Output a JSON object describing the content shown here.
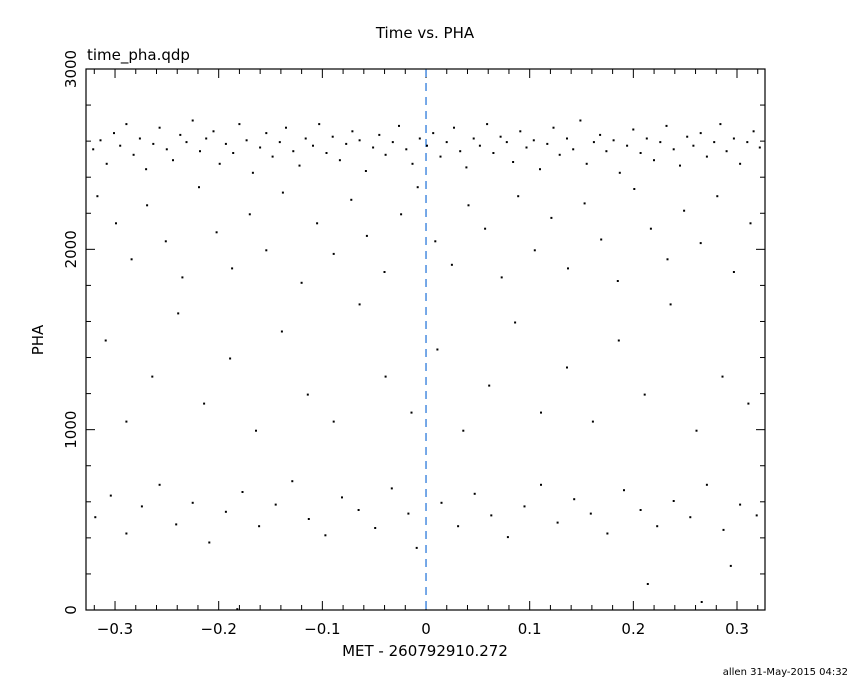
{
  "chart_data": {
    "type": "scatter",
    "title": "Time vs. PHA",
    "file_label": "time_pha.qdp",
    "xlabel": "MET - 260792910.272",
    "ylabel": "PHA",
    "footer": "allen 31-May-2015 04:32",
    "xlim": [
      -0.328,
      0.327
    ],
    "ylim": [
      0,
      3000
    ],
    "x_ticks": [
      -0.3,
      -0.2,
      -0.1,
      0,
      0.1,
      0.2,
      0.3
    ],
    "x_tick_labels": [
      "−0.3",
      "−0.2",
      "−0.1",
      "0",
      "0.1",
      "0.2",
      "0.3"
    ],
    "y_ticks": [
      0,
      1000,
      2000,
      3000
    ],
    "y_tick_labels": [
      "0",
      "1000",
      "2000",
      "3000"
    ],
    "grid": false,
    "reference_line": {
      "x": 0,
      "style": "dashed",
      "color": "#1a6fd8"
    },
    "point_color": "#000000",
    "points": [
      [
        -0.322,
        2560
      ],
      [
        -0.315,
        2610
      ],
      [
        -0.309,
        2480
      ],
      [
        -0.302,
        2650
      ],
      [
        -0.296,
        2580
      ],
      [
        -0.29,
        2700
      ],
      [
        -0.283,
        2530
      ],
      [
        -0.277,
        2620
      ],
      [
        -0.271,
        2450
      ],
      [
        -0.264,
        2590
      ],
      [
        -0.258,
        2680
      ],
      [
        -0.251,
        2560
      ],
      [
        -0.245,
        2500
      ],
      [
        -0.238,
        2640
      ],
      [
        -0.232,
        2600
      ],
      [
        -0.226,
        2720
      ],
      [
        -0.219,
        2550
      ],
      [
        -0.213,
        2620
      ],
      [
        -0.206,
        2660
      ],
      [
        -0.2,
        2480
      ],
      [
        -0.194,
        2590
      ],
      [
        -0.187,
        2540
      ],
      [
        -0.181,
        2700
      ],
      [
        -0.174,
        2610
      ],
      [
        -0.168,
        2430
      ],
      [
        -0.161,
        2570
      ],
      [
        -0.155,
        2650
      ],
      [
        -0.149,
        2520
      ],
      [
        -0.142,
        2600
      ],
      [
        -0.136,
        2680
      ],
      [
        -0.129,
        2550
      ],
      [
        -0.123,
        2470
      ],
      [
        -0.117,
        2620
      ],
      [
        -0.11,
        2580
      ],
      [
        -0.104,
        2700
      ],
      [
        -0.097,
        2540
      ],
      [
        -0.091,
        2630
      ],
      [
        -0.084,
        2500
      ],
      [
        -0.078,
        2590
      ],
      [
        -0.072,
        2660
      ],
      [
        -0.065,
        2610
      ],
      [
        -0.059,
        2440
      ],
      [
        -0.052,
        2570
      ],
      [
        -0.046,
        2640
      ],
      [
        -0.04,
        2530
      ],
      [
        -0.033,
        2600
      ],
      [
        -0.027,
        2690
      ],
      [
        -0.02,
        2560
      ],
      [
        -0.014,
        2480
      ],
      [
        -0.007,
        2620
      ],
      [
        0.0,
        2580
      ],
      [
        0.006,
        2650
      ],
      [
        0.013,
        2520
      ],
      [
        0.019,
        2600
      ],
      [
        0.026,
        2680
      ],
      [
        0.032,
        2550
      ],
      [
        0.038,
        2460
      ],
      [
        0.045,
        2620
      ],
      [
        0.051,
        2580
      ],
      [
        0.058,
        2700
      ],
      [
        0.064,
        2540
      ],
      [
        0.071,
        2630
      ],
      [
        0.077,
        2600
      ],
      [
        0.083,
        2490
      ],
      [
        0.09,
        2660
      ],
      [
        0.096,
        2570
      ],
      [
        0.103,
        2610
      ],
      [
        0.109,
        2450
      ],
      [
        0.116,
        2590
      ],
      [
        0.122,
        2680
      ],
      [
        0.128,
        2530
      ],
      [
        0.135,
        2620
      ],
      [
        0.141,
        2560
      ],
      [
        0.148,
        2720
      ],
      [
        0.154,
        2480
      ],
      [
        0.161,
        2600
      ],
      [
        0.167,
        2640
      ],
      [
        0.173,
        2550
      ],
      [
        0.18,
        2610
      ],
      [
        0.186,
        2430
      ],
      [
        0.193,
        2580
      ],
      [
        0.199,
        2670
      ],
      [
        0.206,
        2540
      ],
      [
        0.212,
        2620
      ],
      [
        0.219,
        2500
      ],
      [
        0.225,
        2600
      ],
      [
        0.231,
        2690
      ],
      [
        0.238,
        2560
      ],
      [
        0.244,
        2470
      ],
      [
        0.251,
        2630
      ],
      [
        0.257,
        2580
      ],
      [
        0.264,
        2650
      ],
      [
        0.27,
        2520
      ],
      [
        0.277,
        2600
      ],
      [
        0.283,
        2700
      ],
      [
        0.289,
        2550
      ],
      [
        0.296,
        2620
      ],
      [
        0.302,
        2480
      ],
      [
        0.309,
        2600
      ],
      [
        0.315,
        2660
      ],
      [
        0.321,
        2570
      ],
      [
        -0.318,
        2300
      ],
      [
        -0.3,
        2150
      ],
      [
        -0.285,
        1950
      ],
      [
        -0.27,
        2250
      ],
      [
        -0.252,
        2050
      ],
      [
        -0.236,
        1850
      ],
      [
        -0.22,
        2350
      ],
      [
        -0.203,
        2100
      ],
      [
        -0.188,
        1900
      ],
      [
        -0.171,
        2200
      ],
      [
        -0.155,
        2000
      ],
      [
        -0.139,
        2320
      ],
      [
        -0.121,
        1820
      ],
      [
        -0.106,
        2150
      ],
      [
        -0.09,
        1980
      ],
      [
        -0.073,
        2280
      ],
      [
        -0.058,
        2080
      ],
      [
        -0.041,
        1880
      ],
      [
        -0.025,
        2200
      ],
      [
        -0.009,
        2350
      ],
      [
        0.008,
        2050
      ],
      [
        0.024,
        1920
      ],
      [
        0.04,
        2250
      ],
      [
        0.056,
        2120
      ],
      [
        0.072,
        1850
      ],
      [
        0.088,
        2300
      ],
      [
        0.104,
        2000
      ],
      [
        0.12,
        2180
      ],
      [
        0.136,
        1900
      ],
      [
        0.152,
        2260
      ],
      [
        0.168,
        2060
      ],
      [
        0.184,
        1830
      ],
      [
        0.2,
        2340
      ],
      [
        0.216,
        2120
      ],
      [
        0.232,
        1950
      ],
      [
        0.248,
        2220
      ],
      [
        0.264,
        2040
      ],
      [
        0.28,
        2300
      ],
      [
        0.296,
        1880
      ],
      [
        0.312,
        2150
      ],
      [
        -0.31,
        1500
      ],
      [
        -0.29,
        1050
      ],
      [
        -0.265,
        1300
      ],
      [
        -0.24,
        1650
      ],
      [
        -0.215,
        1150
      ],
      [
        -0.19,
        1400
      ],
      [
        -0.165,
        1000
      ],
      [
        -0.14,
        1550
      ],
      [
        -0.115,
        1200
      ],
      [
        -0.09,
        1050
      ],
      [
        -0.065,
        1700
      ],
      [
        -0.04,
        1300
      ],
      [
        -0.015,
        1100
      ],
      [
        0.01,
        1450
      ],
      [
        0.035,
        1000
      ],
      [
        0.06,
        1250
      ],
      [
        0.085,
        1600
      ],
      [
        0.11,
        1100
      ],
      [
        0.135,
        1350
      ],
      [
        0.16,
        1050
      ],
      [
        0.185,
        1500
      ],
      [
        0.21,
        1200
      ],
      [
        0.235,
        1700
      ],
      [
        0.26,
        1000
      ],
      [
        0.285,
        1300
      ],
      [
        0.31,
        1150
      ],
      [
        -0.32,
        520
      ],
      [
        -0.305,
        640
      ],
      [
        -0.29,
        430
      ],
      [
        -0.275,
        580
      ],
      [
        -0.258,
        700
      ],
      [
        -0.242,
        480
      ],
      [
        -0.226,
        600
      ],
      [
        -0.21,
        380
      ],
      [
        -0.194,
        550
      ],
      [
        -0.178,
        660
      ],
      [
        -0.162,
        470
      ],
      [
        -0.146,
        590
      ],
      [
        -0.13,
        720
      ],
      [
        -0.114,
        510
      ],
      [
        -0.098,
        420
      ],
      [
        -0.082,
        630
      ],
      [
        -0.066,
        560
      ],
      [
        -0.05,
        460
      ],
      [
        -0.034,
        680
      ],
      [
        -0.018,
        540
      ],
      [
        -0.01,
        350
      ],
      [
        0.014,
        600
      ],
      [
        0.03,
        470
      ],
      [
        0.046,
        650
      ],
      [
        0.062,
        530
      ],
      [
        0.078,
        410
      ],
      [
        0.094,
        580
      ],
      [
        0.11,
        700
      ],
      [
        0.126,
        490
      ],
      [
        0.142,
        620
      ],
      [
        0.158,
        540
      ],
      [
        0.174,
        430
      ],
      [
        0.19,
        670
      ],
      [
        0.206,
        560
      ],
      [
        0.222,
        470
      ],
      [
        0.238,
        610
      ],
      [
        0.254,
        520
      ],
      [
        0.27,
        700
      ],
      [
        0.286,
        450
      ],
      [
        0.302,
        590
      ],
      [
        0.318,
        530
      ],
      [
        0.213,
        150
      ],
      [
        0.265,
        50
      ],
      [
        0.293,
        250
      ],
      [
        -0.183,
        10
      ]
    ]
  }
}
